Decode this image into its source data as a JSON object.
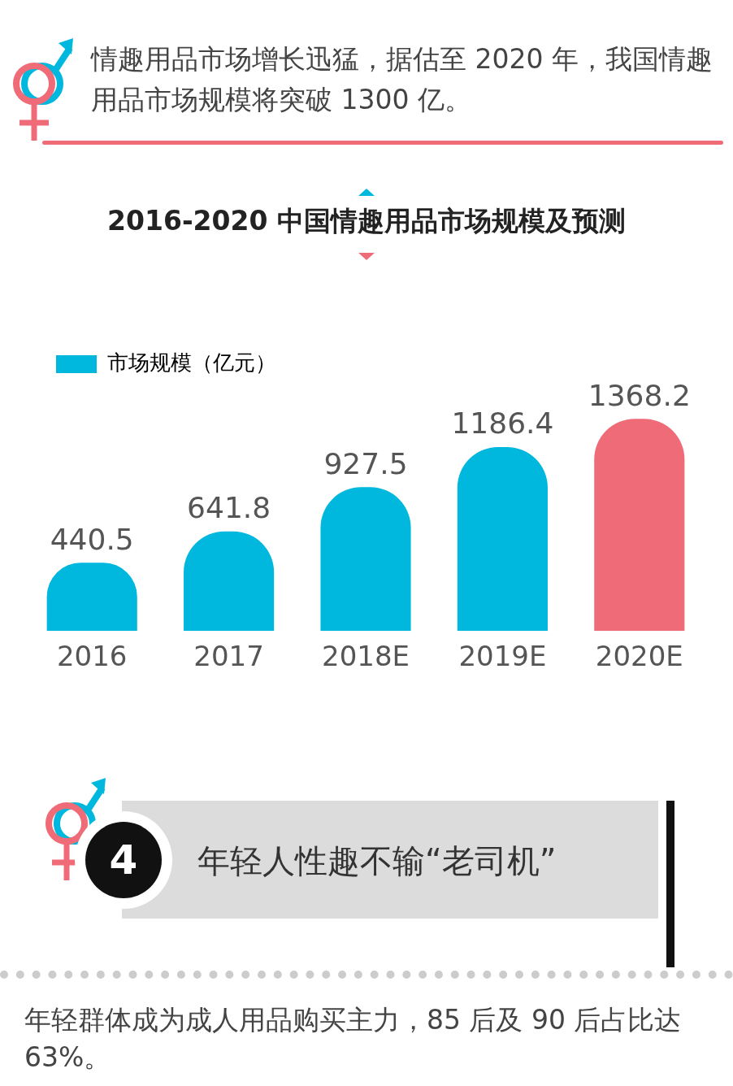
{
  "chart_data": {
    "type": "bar",
    "title": "2016-2020 中国情趣用品市场规模及预测",
    "categories": [
      "2016",
      "2017",
      "2018E",
      "2019E",
      "2020E"
    ],
    "series": [
      {
        "name": "市场规模（亿元）",
        "color": "#00b8de",
        "colors": [
          "#00b8de",
          "#00b8de",
          "#00b8de",
          "#00b8de",
          "#f06b78"
        ],
        "values": [
          440.5,
          641.8,
          927.5,
          1186.4,
          1368.2
        ]
      }
    ],
    "data_labels": true,
    "legend": "top left",
    "grid": false,
    "annotations": [
      "情趣用品市场增长迅猛，据估至 2020 年，我国情趣用品市场规模将突破 1300 亿。",
      "4",
      "年轻人性趣不输“老司机”",
      "年轻群体成为成人用品购买主力，85 后及 90 后占比达 63%。"
    ]
  }
}
